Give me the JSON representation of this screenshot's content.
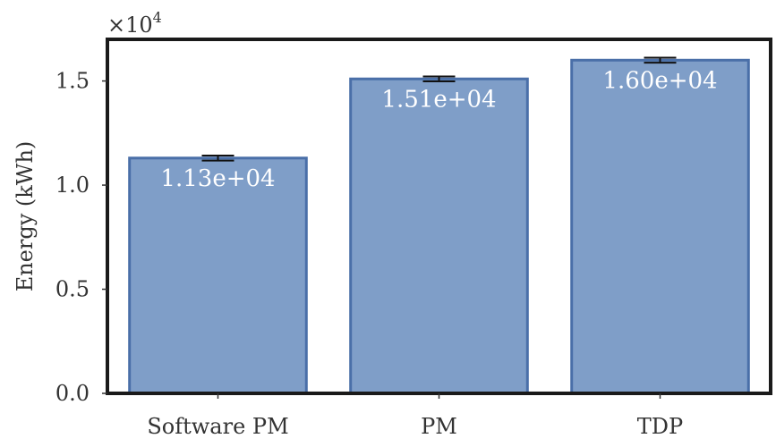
{
  "chart_data": {
    "type": "bar",
    "categories": [
      "Software PM",
      "PM",
      "TDP"
    ],
    "values": [
      11300,
      15100,
      16000
    ],
    "error": [
      120,
      120,
      120
    ],
    "data_labels": [
      "1.13e+04",
      "1.51e+04",
      "1.60e+04"
    ],
    "title": "",
    "xlabel": "",
    "ylabel": "Energy (kWh)",
    "ylim": [
      0,
      17000
    ],
    "y_scale_factor": 10000,
    "y_tick_values": [
      0,
      5000,
      10000,
      15000
    ],
    "y_tick_labels": [
      "0.0",
      "0.5",
      "1.0",
      "1.5"
    ],
    "offset_text": {
      "base": "×10",
      "exponent": "4"
    },
    "grid": false,
    "bar_color": "#7f9ec8",
    "bar_edge_color": "#4a6fa8",
    "frame_color": "#1a1a1a"
  }
}
